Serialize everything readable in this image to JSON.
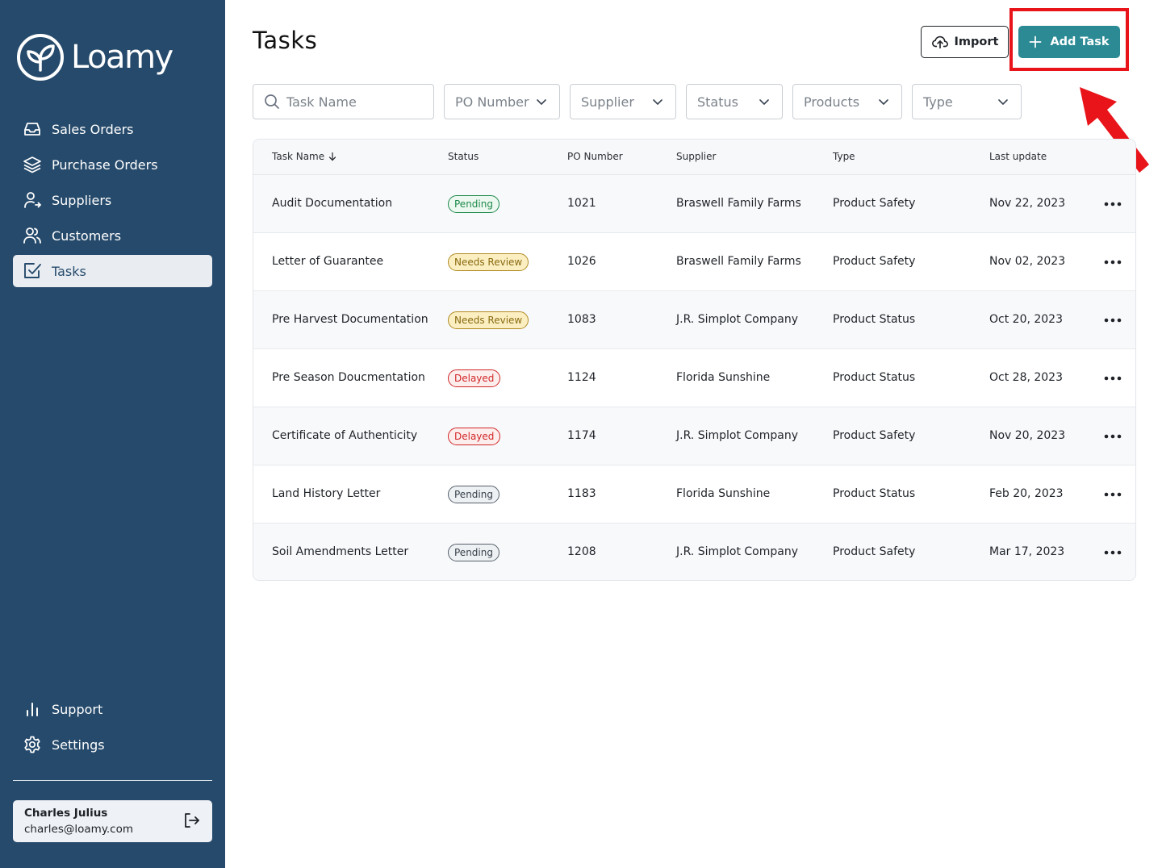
{
  "brand": {
    "name": "Loamy"
  },
  "sidebar": {
    "items": [
      {
        "label": "Sales Orders",
        "icon": "inbox-icon"
      },
      {
        "label": "Purchase Orders",
        "icon": "layers-icon"
      },
      {
        "label": "Suppliers",
        "icon": "user-arrow-icon"
      },
      {
        "label": "Customers",
        "icon": "users-icon"
      },
      {
        "label": "Tasks",
        "icon": "checkbox-icon",
        "active": true
      }
    ],
    "bottom_items": [
      {
        "label": "Support",
        "icon": "bar-chart-icon"
      },
      {
        "label": "Settings",
        "icon": "gear-icon"
      }
    ],
    "user": {
      "name": "Charles Julius",
      "email": "charles@loamy.com"
    }
  },
  "header": {
    "title": "Tasks",
    "import_label": "Import",
    "add_label": "Add Task"
  },
  "filters": {
    "task_name_placeholder": "Task Name",
    "po_number": "PO Number",
    "supplier": "Supplier",
    "status": "Status",
    "products": "Products",
    "type": "Type"
  },
  "table": {
    "columns": [
      "Task Name",
      "Status",
      "PO Number",
      "Supplier",
      "Type",
      "Last update"
    ],
    "rows": [
      {
        "task": "Audit Documentation",
        "status": "Pending",
        "po": "1021",
        "supplier": "Braswell Family Farms",
        "type": "Product Safety",
        "updated": "Nov 22, 2023"
      },
      {
        "task": "Letter of Guarantee",
        "status": "Needs Review",
        "po": "1026",
        "supplier": "Braswell Family Farms",
        "type": "Product Safety",
        "updated": "Nov 02, 2023"
      },
      {
        "task": "Pre Harvest Documentation",
        "status": "Needs Review",
        "po": "1083",
        "supplier": "J.R. Simplot Company",
        "type": "Product Status",
        "updated": "Oct 20, 2023"
      },
      {
        "task": "Pre Season Doucmentation",
        "status": "Delayed",
        "po": "1124",
        "supplier": "Florida Sunshine",
        "type": "Product Status",
        "updated": "Oct 28, 2023"
      },
      {
        "task": "Certificate of Authenticity",
        "status": "Delayed",
        "po": "1174",
        "supplier": "J.R. Simplot Company",
        "type": "Product Safety",
        "updated": "Nov 20, 2023"
      },
      {
        "task": "Land History Letter",
        "status": "Pending",
        "po": "1183",
        "supplier": "Florida Sunshine",
        "type": "Product Status",
        "updated": "Feb 20, 2023"
      },
      {
        "task": "Soil Amendments Letter",
        "status": "Pending",
        "po": "1208",
        "supplier": "J.R. Simplot Company",
        "type": "Product Safety",
        "updated": "Mar 17, 2023"
      }
    ]
  },
  "colors": {
    "sidebar_bg": "#264a6b",
    "accent": "#2b8a94",
    "highlight": "#e8141a"
  }
}
